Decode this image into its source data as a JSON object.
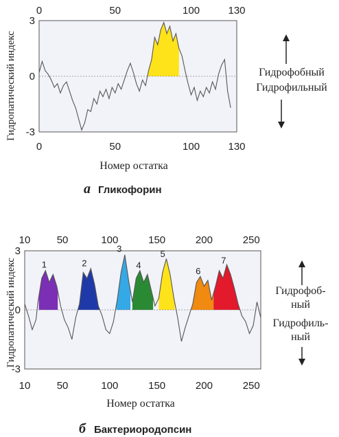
{
  "chart_data": [
    {
      "type": "area",
      "title": "Гликофорин",
      "caption_letter": "а",
      "xlabel": "Номер остатка",
      "ylabel": "Гидропатический индекс",
      "xlim": [
        0,
        130
      ],
      "ylim": [
        -3,
        3
      ],
      "top_ticks": [
        "0",
        "50",
        "100",
        "130"
      ],
      "bottom_ticks": [
        "0",
        "50",
        "100",
        "130"
      ],
      "y_ticks": [
        "3",
        "0",
        "-3"
      ],
      "side_labels": {
        "up": "Гидрофобный",
        "down": "Гидрофильный"
      },
      "colors": {
        "background": "#f2f3f9",
        "trace": "#555555"
      },
      "x": [
        0,
        2,
        4,
        6,
        8,
        10,
        12,
        14,
        16,
        18,
        20,
        22,
        24,
        26,
        28,
        30,
        32,
        34,
        36,
        38,
        40,
        42,
        44,
        46,
        48,
        50,
        52,
        54,
        56,
        58,
        60,
        62,
        64,
        66,
        68,
        70,
        72,
        74,
        76,
        78,
        80,
        82,
        84,
        86,
        88,
        90,
        92,
        94,
        96,
        98,
        100,
        102,
        104,
        106,
        108,
        110,
        112,
        114,
        116,
        118,
        120,
        122,
        124,
        126
      ],
      "y": [
        0.2,
        0.8,
        0.3,
        0.1,
        -0.2,
        -0.6,
        -0.4,
        -0.9,
        -0.5,
        -0.3,
        -0.8,
        -1.3,
        -1.7,
        -2.3,
        -2.9,
        -2.5,
        -1.8,
        -1.9,
        -1.2,
        -1.5,
        -0.8,
        -1.1,
        -0.7,
        -1.2,
        -0.6,
        -0.9,
        -0.4,
        -0.7,
        -0.2,
        0.3,
        0.7,
        0.2,
        -0.4,
        -0.8,
        -0.2,
        -0.5,
        0.3,
        0.9,
        2.1,
        1.7,
        2.5,
        2.9,
        2.3,
        2.7,
        1.9,
        2.3,
        1.5,
        1.1,
        0.3,
        -0.4,
        -1.0,
        -0.6,
        -1.3,
        -0.8,
        -1.1,
        -0.6,
        -0.9,
        -0.3,
        -0.7,
        0.1,
        0.6,
        0.9,
        -0.8,
        -1.7
      ],
      "highlight": [
        {
          "from": 70,
          "to": 92,
          "color": "#ffe31a"
        }
      ]
    },
    {
      "type": "area",
      "title": "Бактериородопсин",
      "caption_letter": "б",
      "xlabel": "Номер остатка",
      "ylabel": "Гидропатический индекс",
      "xlim": [
        10,
        260
      ],
      "ylim": [
        -3,
        3
      ],
      "top_ticks": [
        "10",
        "50",
        "100",
        "150",
        "200",
        "250"
      ],
      "bottom_ticks": [
        "10",
        "50",
        "100",
        "150",
        "200",
        "250"
      ],
      "y_ticks": [
        "3",
        "0",
        "-3"
      ],
      "side_labels": {
        "up": "Гидрофоб-\nный",
        "down": "Гидрофиль-\nный"
      },
      "colors": {
        "background": "#f2f3f9",
        "trace": "#555555"
      },
      "x": [
        10,
        14,
        18,
        22,
        24,
        28,
        32,
        36,
        40,
        44,
        48,
        52,
        56,
        60,
        64,
        68,
        72,
        76,
        80,
        84,
        88,
        92,
        96,
        100,
        104,
        108,
        112,
        116,
        120,
        124,
        128,
        132,
        136,
        140,
        144,
        148,
        152,
        156,
        160,
        164,
        168,
        172,
        176,
        180,
        184,
        188,
        192,
        196,
        200,
        204,
        208,
        212,
        216,
        220,
        224,
        228,
        232,
        236,
        240,
        244,
        248,
        252,
        256,
        260
      ],
      "y": [
        0.3,
        -0.3,
        -1.0,
        -0.5,
        0.4,
        1.6,
        2.0,
        1.4,
        1.8,
        1.2,
        0.2,
        -0.5,
        -0.9,
        -1.5,
        -0.4,
        0.3,
        1.9,
        1.6,
        2.1,
        1.3,
        0.2,
        -0.3,
        -1.0,
        -1.2,
        -0.6,
        0.5,
        1.9,
        2.8,
        1.5,
        0.4,
        1.6,
        2.0,
        1.4,
        1.8,
        1.0,
        0.2,
        0.6,
        1.9,
        2.6,
        1.8,
        0.6,
        -0.4,
        -1.6,
        -0.9,
        -0.3,
        0.3,
        1.4,
        1.7,
        1.2,
        1.5,
        0.5,
        1.2,
        2.0,
        1.6,
        2.3,
        1.8,
        1.1,
        0.3,
        -0.3,
        -0.6,
        -1.2,
        -0.8,
        0.4,
        -0.4
      ],
      "segments": [
        {
          "label": "1",
          "from": 25,
          "to": 45,
          "color": "#7a2fb5"
        },
        {
          "label": "2",
          "from": 66,
          "to": 89,
          "color": "#1f3aa8"
        },
        {
          "label": "3",
          "from": 107,
          "to": 122,
          "color": "#35a8e6"
        },
        {
          "label": "4",
          "from": 124,
          "to": 146,
          "color": "#2a8a33"
        },
        {
          "label": "5",
          "from": 152,
          "to": 169,
          "color": "#ffe31a"
        },
        {
          "label": "6",
          "from": 186,
          "to": 210,
          "color": "#f08a10"
        },
        {
          "label": "7",
          "from": 210,
          "to": 240,
          "color": "#e3192c"
        }
      ]
    }
  ]
}
